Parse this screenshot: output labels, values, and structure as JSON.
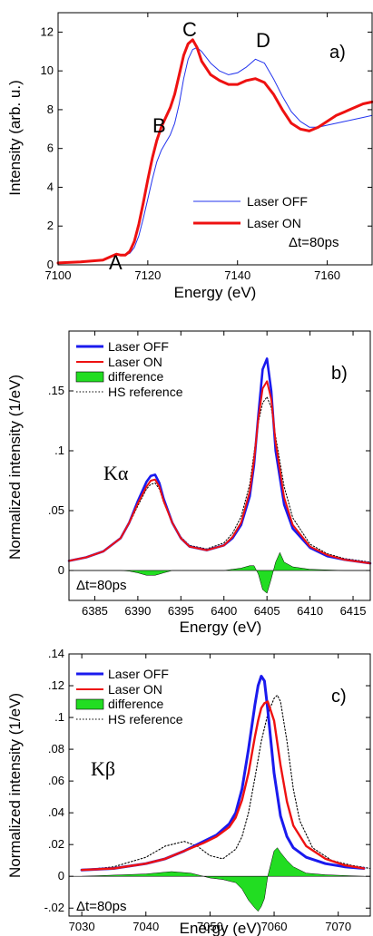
{
  "colors": {
    "laser_off_a": "#2233ee",
    "laser_on": "#ee1111",
    "laser_off": "#1a1aee",
    "difference": "#22dd22",
    "hs_reference": "#000000"
  },
  "chart_data": [
    {
      "panel": "a)",
      "type": "line",
      "xlabel": "Energy (eV)",
      "ylabel": "Intensity (arb. u.)",
      "xlim": [
        7100,
        7170
      ],
      "ylim": [
        0,
        13
      ],
      "xticks": [
        7100,
        7120,
        7140,
        7160
      ],
      "yticks": [
        0,
        2,
        4,
        6,
        8,
        10,
        12
      ],
      "legend": {
        "placement": "center-right",
        "entries": [
          "Laser OFF",
          "Laser ON"
        ]
      },
      "annotations": [
        {
          "text": "A",
          "x": 7113.5,
          "y": 0.9
        },
        {
          "text": "B",
          "x": 7125,
          "y": 8.2
        },
        {
          "text": "C",
          "x": 7130,
          "y": 12.0
        },
        {
          "text": "D",
          "x": 7144,
          "y": 11.2
        },
        {
          "text": "Δt=80ps",
          "placement": "bottom-right"
        }
      ],
      "series": [
        {
          "name": "Laser OFF",
          "x": [
            7100,
            7105,
            7110,
            7112,
            7113,
            7114,
            7115,
            7116,
            7117,
            7118,
            7119,
            7120,
            7121,
            7122,
            7123,
            7124,
            7125,
            7126,
            7127,
            7128,
            7129,
            7130,
            7131,
            7132,
            7134,
            7136,
            7138,
            7140,
            7142,
            7144,
            7146,
            7148,
            7150,
            7152,
            7154,
            7156,
            7158,
            7160,
            7162,
            7164,
            7166,
            7168,
            7170
          ],
          "y": [
            0.1,
            0.15,
            0.25,
            0.45,
            0.55,
            0.5,
            0.5,
            0.6,
            0.9,
            1.5,
            2.4,
            3.4,
            4.4,
            5.3,
            5.9,
            6.3,
            6.7,
            7.3,
            8.3,
            9.6,
            10.6,
            11.1,
            11.2,
            11.0,
            10.4,
            10.0,
            9.8,
            9.9,
            10.2,
            10.6,
            10.4,
            9.6,
            8.7,
            7.9,
            7.4,
            7.1,
            7.1,
            7.2,
            7.3,
            7.4,
            7.5,
            7.6,
            7.7
          ]
        },
        {
          "name": "Laser ON",
          "x": [
            7100,
            7105,
            7110,
            7112,
            7113,
            7114,
            7115,
            7116,
            7117,
            7118,
            7119,
            7120,
            7121,
            7122,
            7123,
            7124,
            7125,
            7126,
            7127,
            7128,
            7129,
            7130,
            7131,
            7132,
            7134,
            7136,
            7138,
            7140,
            7142,
            7144,
            7146,
            7148,
            7150,
            7152,
            7154,
            7156,
            7158,
            7160,
            7162,
            7164,
            7166,
            7168,
            7170
          ],
          "y": [
            0.1,
            0.15,
            0.25,
            0.45,
            0.55,
            0.5,
            0.5,
            0.7,
            1.2,
            2.1,
            3.2,
            4.4,
            5.5,
            6.4,
            7.1,
            7.6,
            8.1,
            8.8,
            9.8,
            10.8,
            11.4,
            11.6,
            11.2,
            10.5,
            9.8,
            9.5,
            9.3,
            9.3,
            9.5,
            9.6,
            9.4,
            8.8,
            8.0,
            7.3,
            7.0,
            6.9,
            7.1,
            7.4,
            7.7,
            7.9,
            8.1,
            8.3,
            8.4
          ]
        }
      ]
    },
    {
      "panel": "b)",
      "type": "line",
      "xlabel": "Energy (eV)",
      "ylabel": "Normalized intensity (1/eV)",
      "xlim": [
        6382,
        6417
      ],
      "ylim": [
        -0.025,
        0.2
      ],
      "xticks": [
        6385,
        6390,
        6395,
        6400,
        6405,
        6410,
        6415
      ],
      "yticks": [
        0,
        0.05,
        0.1,
        0.15
      ],
      "legend": {
        "placement": "top-left",
        "entries": [
          "Laser OFF",
          "Laser ON",
          "difference",
          "HS reference"
        ]
      },
      "annotations": [
        {
          "text": "Kα",
          "x": 6387.5,
          "y": 0.085
        },
        {
          "text": "Δt=80ps",
          "placement": "bottom-left"
        }
      ],
      "series": [
        {
          "name": "Laser OFF",
          "x": [
            6382,
            6384,
            6386,
            6388,
            6389,
            6390,
            6391,
            6391.5,
            6392,
            6392.5,
            6393,
            6394,
            6395,
            6396,
            6398,
            6400,
            6401,
            6402,
            6403,
            6403.5,
            6404,
            6404.5,
            6405,
            6405.5,
            6406,
            6407,
            6408,
            6410,
            6412,
            6414,
            6417
          ],
          "y": [
            0.008,
            0.011,
            0.016,
            0.027,
            0.04,
            0.058,
            0.074,
            0.079,
            0.08,
            0.073,
            0.06,
            0.04,
            0.027,
            0.02,
            0.017,
            0.021,
            0.027,
            0.038,
            0.062,
            0.088,
            0.13,
            0.168,
            0.177,
            0.15,
            0.1,
            0.055,
            0.035,
            0.019,
            0.012,
            0.009,
            0.006
          ]
        },
        {
          "name": "Laser ON",
          "x": [
            6382,
            6384,
            6386,
            6388,
            6389,
            6390,
            6391,
            6391.5,
            6392,
            6392.5,
            6393,
            6394,
            6395,
            6396,
            6398,
            6400,
            6401,
            6402,
            6403,
            6403.5,
            6404,
            6404.5,
            6405,
            6405.5,
            6406,
            6407,
            6408,
            6410,
            6412,
            6414,
            6417
          ],
          "y": [
            0.008,
            0.011,
            0.016,
            0.027,
            0.04,
            0.056,
            0.07,
            0.075,
            0.076,
            0.07,
            0.058,
            0.04,
            0.027,
            0.02,
            0.017,
            0.021,
            0.028,
            0.04,
            0.066,
            0.092,
            0.127,
            0.152,
            0.158,
            0.143,
            0.107,
            0.061,
            0.038,
            0.02,
            0.013,
            0.009,
            0.006
          ]
        },
        {
          "name": "difference",
          "x": [
            6382,
            6388,
            6389,
            6390,
            6391,
            6391.5,
            6392,
            6392.5,
            6393,
            6394,
            6395,
            6396,
            6398,
            6400,
            6401,
            6402,
            6403,
            6403.5,
            6404,
            6404.5,
            6405,
            6405.5,
            6406,
            6406.5,
            6407,
            6408,
            6410,
            6414,
            6417
          ],
          "y": [
            0,
            0,
            -0.0005,
            -0.002,
            -0.004,
            -0.004,
            -0.004,
            -0.003,
            -0.002,
            0,
            0,
            0,
            0,
            0,
            0.001,
            0.002,
            0.004,
            0.004,
            -0.003,
            -0.016,
            -0.019,
            -0.007,
            0.007,
            0.015,
            0.007,
            0.003,
            0.001,
            0,
            0
          ]
        },
        {
          "name": "HS reference",
          "x": [
            6382,
            6384,
            6386,
            6388,
            6389,
            6390,
            6391,
            6391.5,
            6392,
            6392.5,
            6393,
            6394,
            6395,
            6396,
            6398,
            6400,
            6401,
            6402,
            6403,
            6403.5,
            6404,
            6404.5,
            6405,
            6405.5,
            6406,
            6407,
            6408,
            6410,
            6412,
            6414,
            6417
          ],
          "y": [
            0.008,
            0.011,
            0.016,
            0.027,
            0.039,
            0.054,
            0.068,
            0.072,
            0.073,
            0.068,
            0.057,
            0.04,
            0.028,
            0.021,
            0.018,
            0.023,
            0.031,
            0.045,
            0.072,
            0.098,
            0.124,
            0.14,
            0.145,
            0.136,
            0.112,
            0.07,
            0.044,
            0.022,
            0.014,
            0.01,
            0.007
          ]
        }
      ]
    },
    {
      "panel": "c)",
      "type": "line",
      "xlabel": "Energy (eV)",
      "ylabel": "Normalized intensity (1/eV)",
      "xlim": [
        7028,
        7075
      ],
      "ylim": [
        -0.025,
        0.14
      ],
      "xticks": [
        7030,
        7040,
        7050,
        7060,
        7070
      ],
      "yticks": [
        -0.02,
        0,
        0.02,
        0.04,
        0.06,
        0.08,
        0.1,
        0.12,
        0.14
      ],
      "legend": {
        "placement": "top-left",
        "entries": [
          "Laser OFF",
          "Laser ON",
          "difference",
          "HS reference"
        ]
      },
      "annotations": [
        {
          "text": "Kβ",
          "x": 7035,
          "y": 0.045
        },
        {
          "text": "Δt=80ps",
          "placement": "bottom-left"
        }
      ],
      "series": [
        {
          "name": "Laser OFF",
          "x": [
            7030,
            7035,
            7040,
            7043,
            7046,
            7049,
            7051,
            7053,
            7054,
            7055,
            7056,
            7057,
            7057.5,
            7058,
            7058.5,
            7059,
            7060,
            7061,
            7062,
            7063,
            7065,
            7068,
            7071,
            7074
          ],
          "y": [
            0.004,
            0.005,
            0.008,
            0.011,
            0.016,
            0.022,
            0.026,
            0.033,
            0.04,
            0.055,
            0.08,
            0.108,
            0.12,
            0.126,
            0.123,
            0.105,
            0.065,
            0.038,
            0.025,
            0.018,
            0.012,
            0.008,
            0.006,
            0.005
          ]
        },
        {
          "name": "Laser ON",
          "x": [
            7030,
            7035,
            7040,
            7043,
            7046,
            7049,
            7051,
            7053,
            7054,
            7055,
            7056,
            7057,
            7057.5,
            7058,
            7058.5,
            7059,
            7060,
            7061,
            7062,
            7063,
            7065,
            7068,
            7071,
            7074
          ],
          "y": [
            0.004,
            0.005,
            0.008,
            0.011,
            0.016,
            0.021,
            0.025,
            0.031,
            0.037,
            0.048,
            0.065,
            0.088,
            0.098,
            0.106,
            0.109,
            0.11,
            0.098,
            0.07,
            0.047,
            0.032,
            0.019,
            0.011,
            0.007,
            0.005
          ]
        },
        {
          "name": "difference",
          "x": [
            7030,
            7040,
            7044,
            7047,
            7050,
            7052,
            7054,
            7055,
            7056,
            7057,
            7057.5,
            7058,
            7058.5,
            7059,
            7059.5,
            7060,
            7060.5,
            7061,
            7062,
            7063,
            7064,
            7065,
            7068,
            7074
          ],
          "y": [
            0,
            0.0015,
            0.003,
            0.002,
            -0.001,
            -0.002,
            -0.004,
            -0.008,
            -0.015,
            -0.02,
            -0.022,
            -0.019,
            -0.014,
            0,
            0.008,
            0.016,
            0.018,
            0.015,
            0.01,
            0.006,
            0.004,
            0.002,
            0.001,
            0
          ]
        },
        {
          "name": "HS reference",
          "x": [
            7030,
            7035,
            7040,
            7043,
            7046,
            7048,
            7050,
            7052,
            7054,
            7055,
            7056,
            7057,
            7058,
            7059,
            7060,
            7060.5,
            7061,
            7062,
            7063,
            7064,
            7066,
            7069,
            7072,
            7075
          ],
          "y": [
            0.004,
            0.006,
            0.012,
            0.019,
            0.022,
            0.019,
            0.013,
            0.011,
            0.017,
            0.025,
            0.04,
            0.062,
            0.085,
            0.102,
            0.112,
            0.114,
            0.11,
            0.085,
            0.055,
            0.035,
            0.018,
            0.01,
            0.007,
            0.005
          ]
        }
      ]
    }
  ]
}
